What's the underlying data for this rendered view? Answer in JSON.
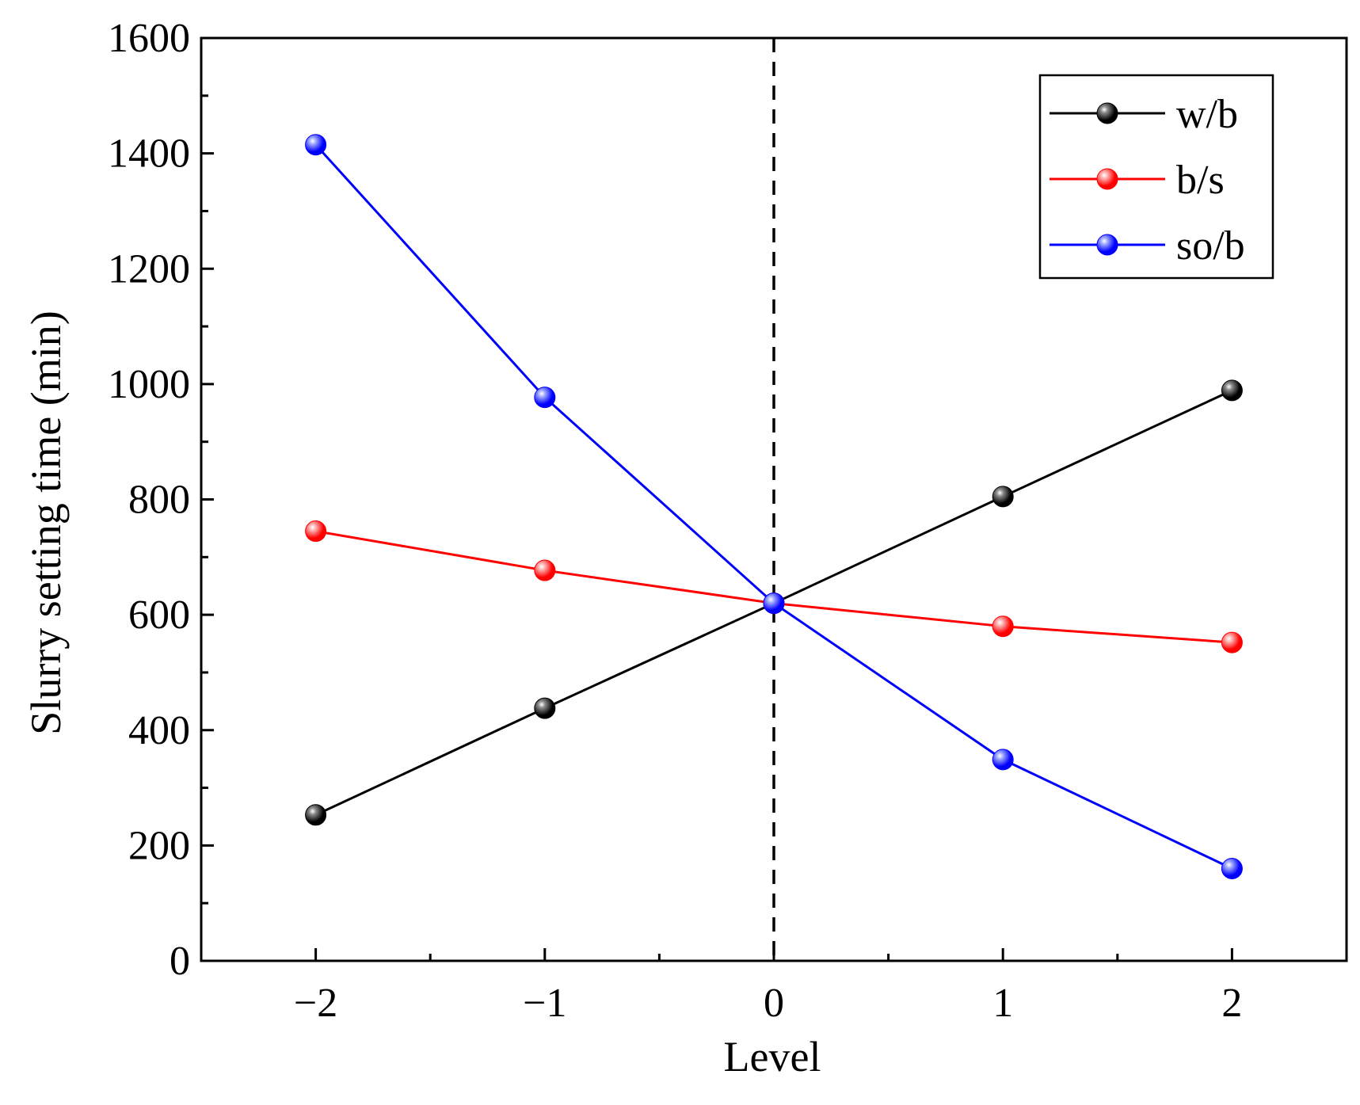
{
  "chart_data": {
    "type": "line",
    "title": "",
    "xlabel": "Level",
    "ylabel": "Slurry setting time (min)",
    "x": [
      -2,
      -1,
      0,
      1,
      2
    ],
    "x_tick_labels": [
      "−2",
      "−1",
      "0",
      "1",
      "2"
    ],
    "xlim": [
      -2.5,
      2.5
    ],
    "ylim": [
      0,
      1600
    ],
    "y_ticks": [
      0,
      200,
      400,
      600,
      800,
      1000,
      1200,
      1400,
      1600
    ],
    "y_tick_labels": [
      "0",
      "200",
      "400",
      "600",
      "800",
      "1000",
      "1200",
      "1400",
      "1600"
    ],
    "grid": false,
    "legend_position": "top-right",
    "reference_line": {
      "x": 0,
      "style": "dashed",
      "color": "#000000"
    },
    "series": [
      {
        "name": "w/b",
        "color": "#000000",
        "marker_highlight": "#8a8a8a",
        "values": [
          253,
          438,
          620,
          805,
          989
        ]
      },
      {
        "name": "b/s",
        "color": "#ff0000",
        "marker_highlight": "#ffb0b0",
        "values": [
          745,
          677,
          620,
          580,
          552
        ]
      },
      {
        "name": "so/b",
        "color": "#0000ff",
        "marker_highlight": "#9fa8ff",
        "values": [
          1415,
          977,
          620,
          349,
          160
        ]
      }
    ]
  }
}
